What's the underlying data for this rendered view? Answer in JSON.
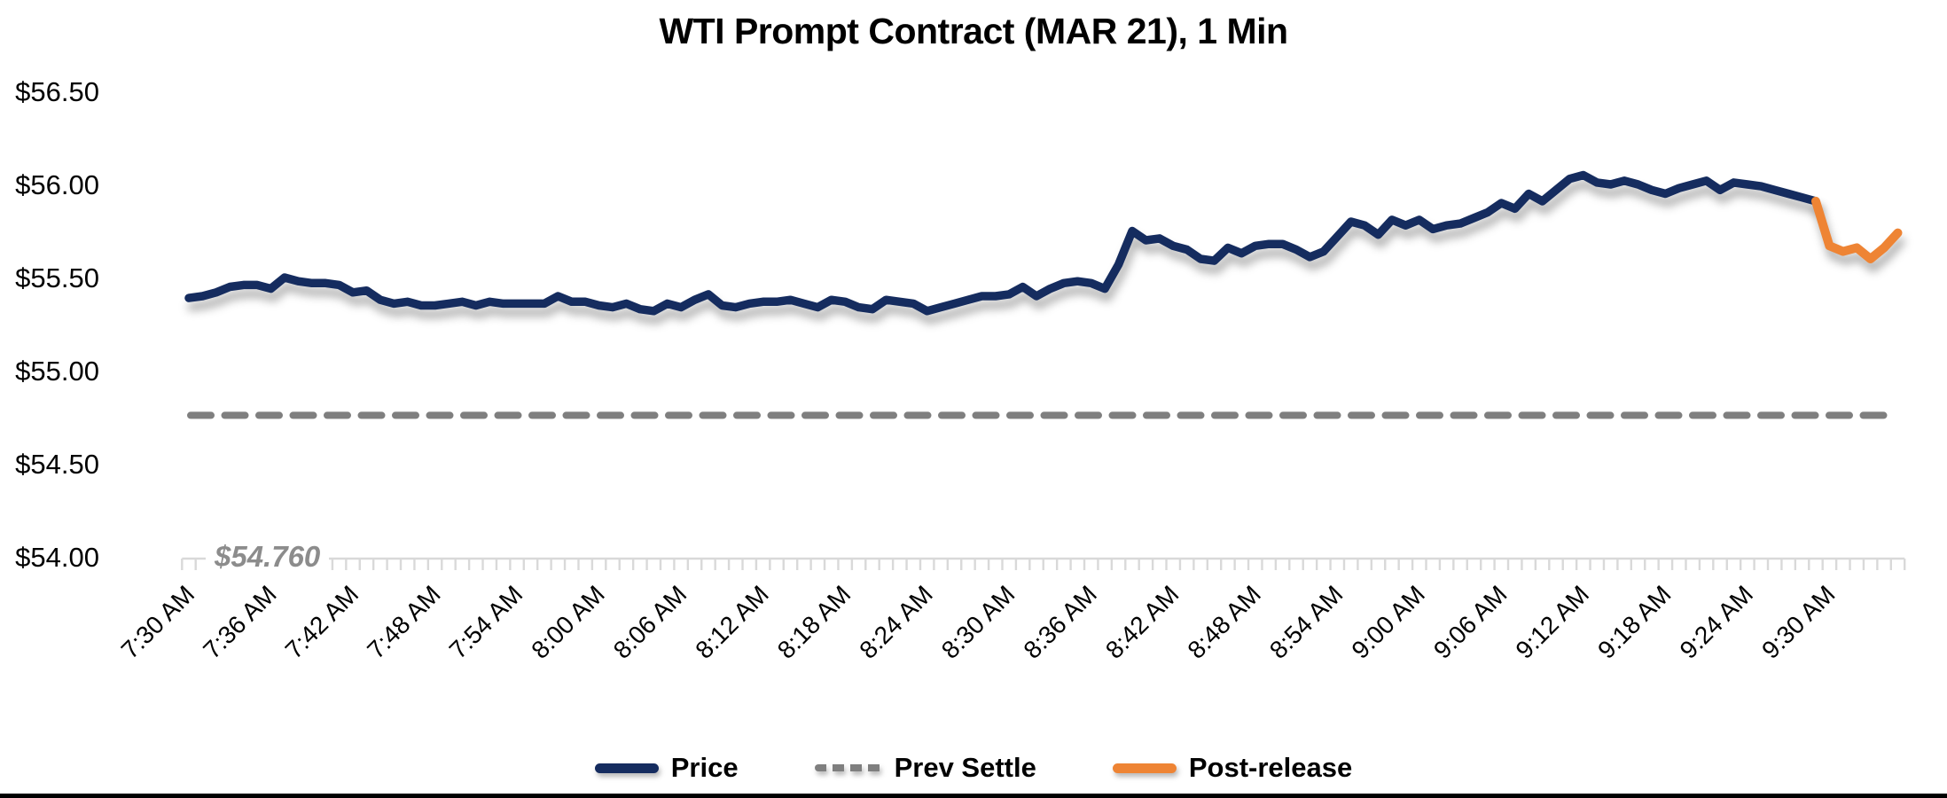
{
  "chart_data": {
    "type": "line",
    "title": "WTI Prompt Contract (MAR 21), 1 Min",
    "x_interval_minutes": 1,
    "label_every_n_minutes": 6,
    "x_tick_labels": [
      "7:30 AM",
      "7:36 AM",
      "7:42 AM",
      "7:48 AM",
      "7:54 AM",
      "8:00 AM",
      "8:06 AM",
      "8:12 AM",
      "8:18 AM",
      "8:24 AM",
      "8:30 AM",
      "8:36 AM",
      "8:42 AM",
      "8:48 AM",
      "8:54 AM",
      "9:00 AM",
      "9:06 AM",
      "9:12 AM",
      "9:18 AM",
      "9:24 AM",
      "9:30 AM"
    ],
    "y_tick_labels": [
      "$56.50",
      "$56.00",
      "$55.50",
      "$55.00",
      "$54.50",
      "$54.00"
    ],
    "ylim": [
      54.0,
      56.5
    ],
    "y_tick_step": 0.5,
    "grid": "off",
    "legend_position": "bottom",
    "axis_color": "#D9D9D9",
    "text_color": "#000000",
    "annotation_color": "#8C8C8C",
    "series": [
      {
        "name": "Price",
        "style": "solid",
        "color": "#152C5F",
        "values": [
          55.39,
          55.4,
          55.42,
          55.45,
          55.46,
          55.46,
          55.44,
          55.5,
          55.48,
          55.47,
          55.47,
          55.46,
          55.42,
          55.43,
          55.38,
          55.36,
          55.37,
          55.35,
          55.35,
          55.36,
          55.37,
          55.35,
          55.37,
          55.36,
          55.36,
          55.36,
          55.36,
          55.4,
          55.37,
          55.37,
          55.35,
          55.34,
          55.36,
          55.33,
          55.32,
          55.36,
          55.34,
          55.38,
          55.41,
          55.35,
          55.34,
          55.36,
          55.37,
          55.37,
          55.38,
          55.36,
          55.34,
          55.38,
          55.37,
          55.34,
          55.33,
          55.38,
          55.37,
          55.36,
          55.32,
          55.34,
          55.36,
          55.38,
          55.4,
          55.4,
          55.41,
          55.45,
          55.4,
          55.44,
          55.47,
          55.48,
          55.47,
          55.44,
          55.57,
          55.75,
          55.7,
          55.71,
          55.67,
          55.65,
          55.6,
          55.59,
          55.66,
          55.63,
          55.67,
          55.68,
          55.68,
          55.65,
          55.61,
          55.64,
          55.72,
          55.8,
          55.78,
          55.73,
          55.81,
          55.78,
          55.81,
          55.76,
          55.78,
          55.79,
          55.82,
          55.85,
          55.9,
          55.87,
          55.95,
          55.91,
          55.97,
          56.03,
          56.05,
          56.01,
          56.0,
          56.02,
          56.0,
          55.97,
          55.95,
          55.98,
          56.0,
          56.02,
          55.97,
          56.01,
          56.0,
          55.99,
          55.97,
          55.95,
          55.93,
          55.91
        ]
      },
      {
        "name": "Prev Settle",
        "style": "dashed",
        "color": "#7F7F7F",
        "value": 54.76,
        "annotation": "$54.760"
      },
      {
        "name": "Post-release",
        "style": "solid",
        "color": "#EE8434",
        "start_index": 119,
        "values": [
          55.91,
          55.67,
          55.64,
          55.66,
          55.6,
          55.66,
          55.74
        ]
      }
    ]
  }
}
